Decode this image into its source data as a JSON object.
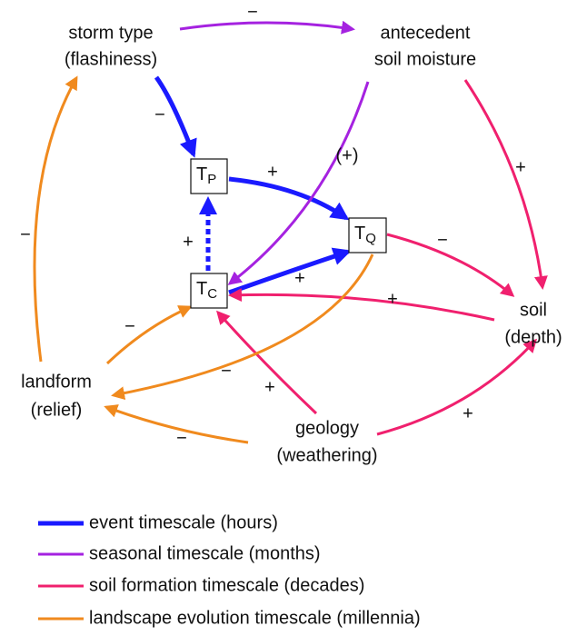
{
  "nodes": [
    {
      "lines": [
        "storm type",
        "(flashiness)"
      ]
    },
    {
      "lines": [
        "antecedent",
        "soil moisture"
      ]
    },
    {
      "label": "T",
      "sub": "P"
    },
    {
      "label": "T",
      "sub": "Q"
    },
    {
      "label": "T",
      "sub": "C"
    },
    {
      "lines": [
        "soil",
        "(depth)"
      ]
    },
    {
      "lines": [
        "landform",
        "(relief)"
      ]
    },
    {
      "lines": [
        "geology",
        "(weathering)"
      ]
    }
  ],
  "edges": [
    {
      "sign": "−"
    },
    {
      "sign": "−"
    },
    {
      "sign": "+"
    },
    {
      "sign": "+"
    },
    {
      "sign": "+"
    },
    {
      "sign": "(+)"
    },
    {
      "sign": "+"
    },
    {
      "sign": "−"
    },
    {
      "sign": "+"
    },
    {
      "sign": "+"
    },
    {
      "sign": "+"
    },
    {
      "sign": "−"
    },
    {
      "sign": "−"
    },
    {
      "sign": "−"
    },
    {
      "sign": "−"
    }
  ],
  "legend": [
    "event timescale (hours)",
    "seasonal timescale (months)",
    "soil formation timescale (decades)",
    "landscape evolution timescale (millennia)"
  ]
}
